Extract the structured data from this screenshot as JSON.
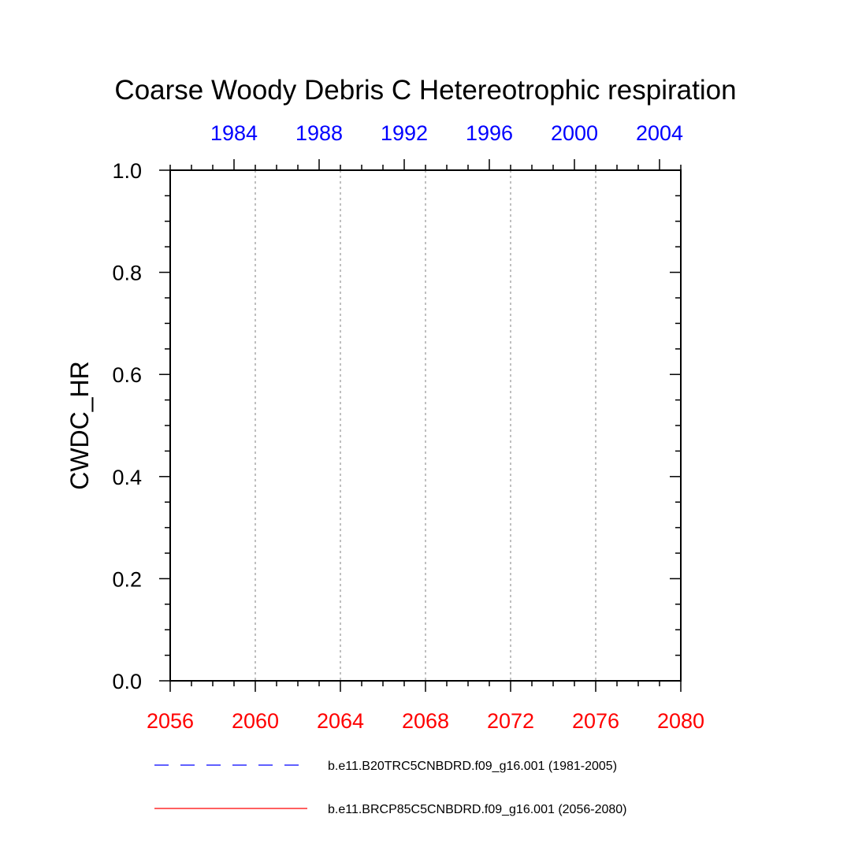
{
  "chart_data": {
    "type": "line",
    "title": "Coarse Woody Debris C Hetereotrophic respiration",
    "ylabel": "CWDC_HR",
    "xlabel": "",
    "ylim": [
      0,
      1
    ],
    "y_ticks": [
      "0.0",
      "0.2",
      "0.4",
      "0.6",
      "0.8",
      "1.0"
    ],
    "y_tick_values": [
      0,
      0.2,
      0.4,
      0.6,
      0.8,
      1.0
    ],
    "bottom_axis": {
      "range": [
        2056,
        2080
      ],
      "ticks": [
        2056,
        2060,
        2064,
        2068,
        2072,
        2076,
        2080
      ],
      "tick_labels": [
        "2056",
        "2060",
        "2064",
        "2068",
        "2072",
        "2076",
        "2080"
      ],
      "color": "#ff0000"
    },
    "top_axis": {
      "range": [
        1981,
        2005
      ],
      "ticks": [
        1984,
        1988,
        1992,
        1996,
        2000,
        2004
      ],
      "tick_labels": [
        "1984",
        "1988",
        "1992",
        "1996",
        "2000",
        "2004"
      ],
      "color": "#0000ff"
    },
    "vertical_grid": [
      2060,
      2064,
      2068,
      2072,
      2076
    ],
    "grid": true,
    "legend_position": "bottom",
    "series": [
      {
        "name": "b.e11.B20TRC5CNBDRD.f09_g16.001 (1981-2005)",
        "color": "#0000ff",
        "dash": "dashed",
        "values": []
      },
      {
        "name": "b.e11.BRCP85C5CNBDRD.f09_g16.001 (2056-2080)",
        "color": "#ff0000",
        "dash": "solid",
        "values": []
      }
    ]
  }
}
